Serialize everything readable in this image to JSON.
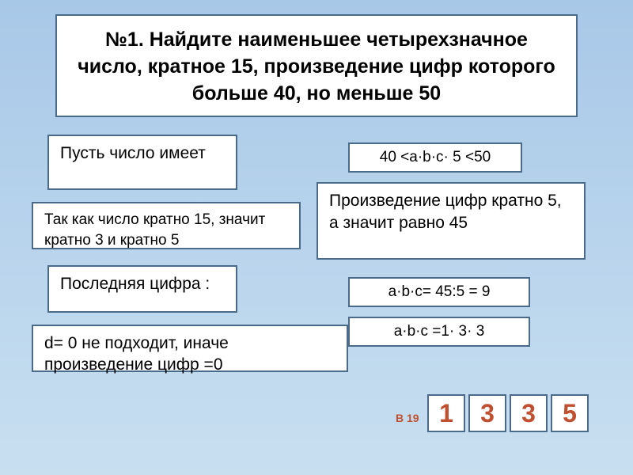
{
  "title": "№1. Найдите наименьшее четырехзначное число, кратное 15, произведение цифр которого больше 40, но меньше 50",
  "pustj": "Пусть число имеет",
  "tak_kak": "Так как число кратно 15, значит кратно 3 и кратно 5",
  "last_digit": "Последняя цифра :",
  "d_zero": "d= 0 не подходит, иначе произведение цифр =0",
  "ineq": "40 <a·b·c· 5 <50",
  "prod_mult5": "Произведение цифр кратно 5, а значит равно 45",
  "eq1": "a·b·c= 45:5 = 9",
  "eq2": "a·b·c =1· 3· 3",
  "b19_label": "В 19",
  "answer": [
    "1",
    "3",
    "3",
    "5"
  ],
  "colors": {
    "bg_top": "#a8c8e8",
    "bg_bottom": "#c8dff0",
    "box_bg": "#ffffff",
    "box_border": "#4a6a8a",
    "answer_text": "#c05030"
  }
}
